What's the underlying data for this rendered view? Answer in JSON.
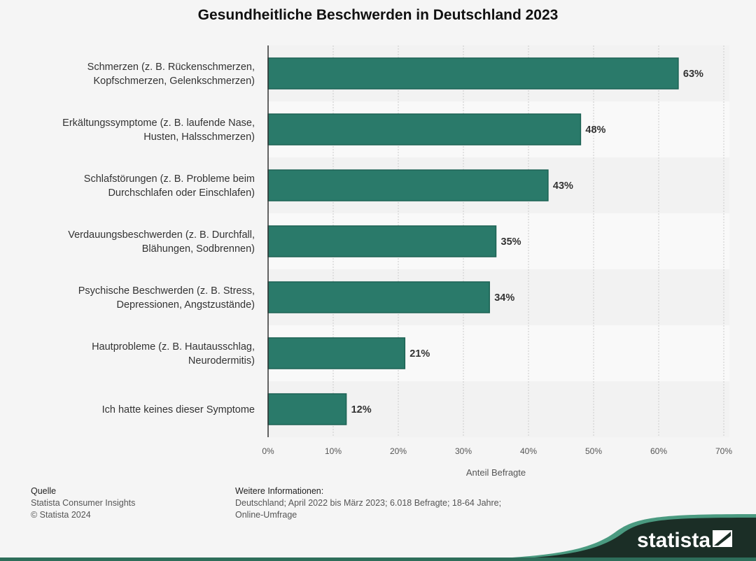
{
  "chart_data": {
    "type": "bar",
    "orientation": "horizontal",
    "title": "Gesundheitliche Beschwerden in Deutschland 2023",
    "categories": [
      [
        "Schmerzen (z. B. Rückenschmerzen,",
        "Kopfschmerzen, Gelenkschmerzen)"
      ],
      [
        "Erkältungssymptome (z. B. laufende Nase,",
        "Husten, Halsschmerzen)"
      ],
      [
        "Schlafstörungen (z. B. Probleme beim",
        "Durchschlafen oder Einschlafen)"
      ],
      [
        "Verdauungsbeschwerden (z. B. Durchfall,",
        "Blähungen, Sodbrennen)"
      ],
      [
        "Psychische Beschwerden (z. B. Stress,",
        "Depressionen, Angstzustände)"
      ],
      [
        "Hautprobleme (z. B. Hautausschlag,",
        "Neurodermitis)"
      ],
      [
        "Ich hatte keines dieser Symptome"
      ]
    ],
    "values": [
      63,
      48,
      43,
      35,
      34,
      21,
      12
    ],
    "value_labels": [
      "63%",
      "48%",
      "43%",
      "35%",
      "34%",
      "21%",
      "12%"
    ],
    "xlabel": "Anteil Befragte",
    "xlim": [
      0,
      70
    ],
    "ticks": [
      "0%",
      "10%",
      "20%",
      "30%",
      "40%",
      "50%",
      "60%",
      "70%"
    ],
    "grid": true,
    "bar_color": "#2a7a6a"
  },
  "footer": {
    "source_heading": "Quelle",
    "source_lines": [
      "Statista Consumer Insights",
      "© Statista 2024"
    ],
    "info_heading": "Weitere Informationen:",
    "info_lines": [
      "Deutschland; April 2022 bis März 2023; 6.018 Befragte; 18-64 Jahre;",
      "Online-Umfrage"
    ],
    "logo": "statista"
  }
}
